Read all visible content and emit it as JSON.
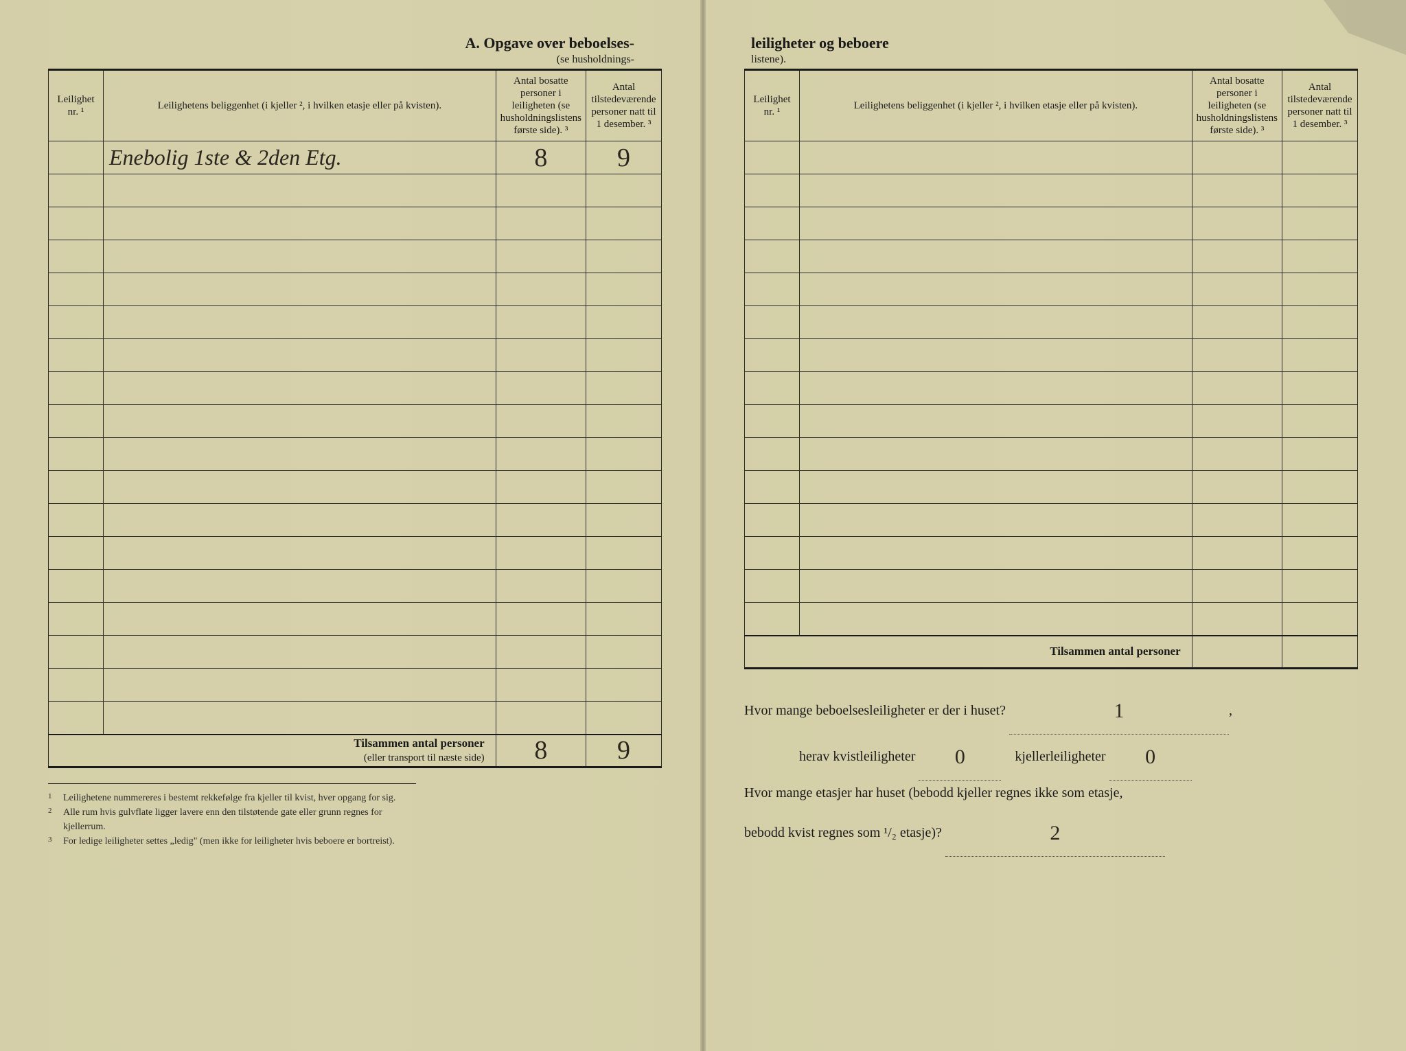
{
  "colors": {
    "paper": "#d4cfa8",
    "ink": "#1a1a1a",
    "handwriting": "#2a261f",
    "rule": "#2a2a2a"
  },
  "header": {
    "left_title": "A.   Opgave over beboelses-",
    "left_subtitle": "(se husholdnings-",
    "right_title": "leiligheter og beboere",
    "right_subtitle": "listene)."
  },
  "columns": {
    "nr": "Leilighet nr. ¹",
    "loc": "Leilighetens beliggenhet (i kjeller ², i hvilken etasje eller på kvisten).",
    "n1": "Antal bosatte personer i leiligheten (se husholdningslistens første side). ³",
    "n2": "Antal tilstedeværende personer natt til 1 desember. ³"
  },
  "left_rows": [
    {
      "nr": "",
      "loc": "Enebolig  1ste & 2den Etg.",
      "n1": "8",
      "n2": "9"
    },
    {
      "nr": "",
      "loc": "",
      "n1": "",
      "n2": ""
    },
    {
      "nr": "",
      "loc": "",
      "n1": "",
      "n2": ""
    },
    {
      "nr": "",
      "loc": "",
      "n1": "",
      "n2": ""
    },
    {
      "nr": "",
      "loc": "",
      "n1": "",
      "n2": ""
    },
    {
      "nr": "",
      "loc": "",
      "n1": "",
      "n2": ""
    },
    {
      "nr": "",
      "loc": "",
      "n1": "",
      "n2": ""
    },
    {
      "nr": "",
      "loc": "",
      "n1": "",
      "n2": ""
    },
    {
      "nr": "",
      "loc": "",
      "n1": "",
      "n2": ""
    },
    {
      "nr": "",
      "loc": "",
      "n1": "",
      "n2": ""
    },
    {
      "nr": "",
      "loc": "",
      "n1": "",
      "n2": ""
    },
    {
      "nr": "",
      "loc": "",
      "n1": "",
      "n2": ""
    },
    {
      "nr": "",
      "loc": "",
      "n1": "",
      "n2": ""
    },
    {
      "nr": "",
      "loc": "",
      "n1": "",
      "n2": ""
    },
    {
      "nr": "",
      "loc": "",
      "n1": "",
      "n2": ""
    },
    {
      "nr": "",
      "loc": "",
      "n1": "",
      "n2": ""
    },
    {
      "nr": "",
      "loc": "",
      "n1": "",
      "n2": ""
    },
    {
      "nr": "",
      "loc": "",
      "n1": "",
      "n2": ""
    }
  ],
  "right_rows_count": 15,
  "totals": {
    "left_label_bold": "Tilsammen antal personer",
    "left_label_sub": "(eller transport til næste side)",
    "left_n1": "8",
    "left_n2": "9",
    "right_label": "Tilsammen antal personer",
    "right_n1": "",
    "right_n2": ""
  },
  "footnotes": {
    "f1": "Leilighetene nummereres i bestemt rekkefølge fra kjeller til kvist, hver opgang for sig.",
    "f2": "Alle rum hvis gulvflate ligger lavere enn den tilstøtende gate eller grunn regnes for kjellerrum.",
    "f3": "For ledige leiligheter settes „ledig\" (men ikke for leiligheter hvis beboere er bortreist)."
  },
  "questions": {
    "q1_pre": "Hvor mange beboelsesleiligheter er der i huset?",
    "q1_val": "1",
    "q2_a": "herav kvistleiligheter",
    "q2_a_val": "0",
    "q2_b": "kjellerleiligheter",
    "q2_b_val": "0",
    "q3_line1": "Hvor mange etasjer har huset (bebodd kjeller regnes ikke som etasje,",
    "q3_line2_pre": "bebodd kvist regnes som ¹/₂ etasje)?",
    "q3_val": "2"
  }
}
